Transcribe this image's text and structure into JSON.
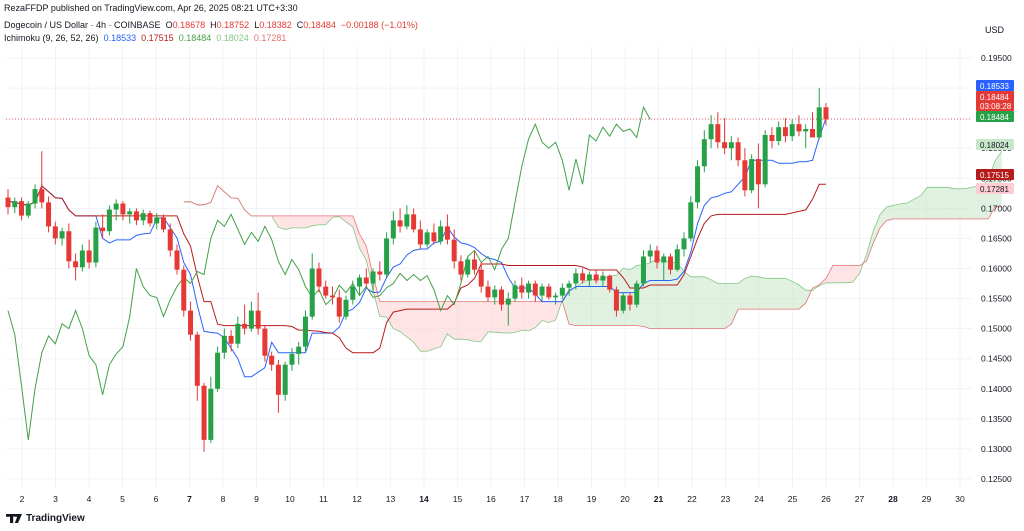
{
  "header": {
    "publisher": "RezaFFDP published on TradingView.com, Apr 26, 2025 08:21 UTC+3:30",
    "symbol": "Dogecoin / US Dollar · 4h · COINBASE",
    "ohlc": {
      "o_label": "O",
      "o": "0.18678",
      "h_label": "H",
      "h": "0.18752",
      "l_label": "L",
      "l": "0.18382",
      "c_label": "C",
      "c": "0.18484",
      "change": "−0.00188 (−1.01%)"
    },
    "ichimoku": {
      "label": "Ichimoku (9, 26, 52, 26)",
      "v1": "0.18533",
      "v2": "0.17515",
      "v3": "0.18484",
      "v4": "0.18024",
      "v5": "0.17281"
    }
  },
  "currency": "USD",
  "brand": "TradingView",
  "colors": {
    "up": "#26a148",
    "down": "#e53935",
    "conversion": "#2962ff",
    "base": "#b71c1c",
    "lagging": "#43a047",
    "cloud_bull": "#c8e6c9",
    "cloud_bear": "#ffcdd2"
  },
  "chart_data": {
    "type": "candlestick",
    "y_ticks": [
      "0.19500",
      "0.19000",
      "0.18500",
      "0.18000",
      "0.17500",
      "0.17000",
      "0.16500",
      "0.16000",
      "0.15500",
      "0.15000",
      "0.14500",
      "0.14000",
      "0.13500",
      "0.13000",
      "0.12500"
    ],
    "ylim": [
      0.1235,
      0.197
    ],
    "x_ticks": [
      "2",
      "3",
      "4",
      "5",
      "6",
      "7",
      "8",
      "9",
      "10",
      "11",
      "12",
      "13",
      "14",
      "15",
      "16",
      "17",
      "18",
      "19",
      "20",
      "21",
      "22",
      "23",
      "24",
      "25",
      "26",
      "27",
      "28",
      "29",
      "30"
    ],
    "x_ticks_bold": [
      "7",
      "14",
      "21",
      "28"
    ],
    "price_badges": [
      {
        "value": "0.18533",
        "color": "#2962ff"
      },
      {
        "value": "0.18484",
        "color": "#e53935"
      },
      {
        "value": "03:08:28",
        "color": "#e53935"
      },
      {
        "value": "0.18484",
        "color": "#26a148"
      },
      {
        "value": "0.18024",
        "color": "#c8e6c9"
      },
      {
        "value": "0.17515",
        "color": "#b71c1c"
      },
      {
        "value": "0.17281",
        "color": "#ffcdd2"
      }
    ],
    "current_price": 0.18484,
    "candles": [
      [
        0.1718,
        0.1732,
        0.169,
        0.1702
      ],
      [
        0.1702,
        0.1718,
        0.1692,
        0.1712
      ],
      [
        0.1712,
        0.1718,
        0.168,
        0.1688
      ],
      [
        0.1688,
        0.1712,
        0.1684,
        0.1708
      ],
      [
        0.1708,
        0.174,
        0.17,
        0.1732
      ],
      [
        0.1732,
        0.1795,
        0.17,
        0.171
      ],
      [
        0.171,
        0.172,
        0.166,
        0.167
      ],
      [
        0.167,
        0.1678,
        0.164,
        0.165
      ],
      [
        0.165,
        0.1668,
        0.1638,
        0.1662
      ],
      [
        0.1662,
        0.1675,
        0.16,
        0.1612
      ],
      [
        0.1612,
        0.1625,
        0.158,
        0.1602
      ],
      [
        0.1602,
        0.164,
        0.1595,
        0.163
      ],
      [
        0.163,
        0.1648,
        0.16,
        0.161
      ],
      [
        0.161,
        0.1678,
        0.1602,
        0.1668
      ],
      [
        0.1668,
        0.169,
        0.165,
        0.1662
      ],
      [
        0.1662,
        0.1705,
        0.1655,
        0.1698
      ],
      [
        0.1698,
        0.1715,
        0.168,
        0.1708
      ],
      [
        0.1708,
        0.1712,
        0.168,
        0.169
      ],
      [
        0.169,
        0.17,
        0.1675,
        0.1695
      ],
      [
        0.1695,
        0.17,
        0.1672,
        0.168
      ],
      [
        0.168,
        0.1698,
        0.1672,
        0.1692
      ],
      [
        0.1692,
        0.1696,
        0.167,
        0.1675
      ],
      [
        0.1675,
        0.1692,
        0.1665,
        0.1685
      ],
      [
        0.1685,
        0.169,
        0.166,
        0.1665
      ],
      [
        0.1665,
        0.1675,
        0.162,
        0.163
      ],
      [
        0.163,
        0.164,
        0.159,
        0.1598
      ],
      [
        0.1598,
        0.1605,
        0.152,
        0.153
      ],
      [
        0.153,
        0.1545,
        0.148,
        0.149
      ],
      [
        0.149,
        0.1495,
        0.138,
        0.1405
      ],
      [
        0.1405,
        0.141,
        0.1295,
        0.1315
      ],
      [
        0.1315,
        0.142,
        0.131,
        0.14
      ],
      [
        0.14,
        0.147,
        0.1395,
        0.146
      ],
      [
        0.146,
        0.15,
        0.145,
        0.1488
      ],
      [
        0.1488,
        0.1498,
        0.1462,
        0.1475
      ],
      [
        0.1475,
        0.152,
        0.1468,
        0.1508
      ],
      [
        0.1508,
        0.154,
        0.149,
        0.15
      ],
      [
        0.15,
        0.1545,
        0.1495,
        0.153
      ],
      [
        0.153,
        0.156,
        0.149,
        0.15
      ],
      [
        0.15,
        0.1505,
        0.1445,
        0.1455
      ],
      [
        0.1455,
        0.1462,
        0.143,
        0.144
      ],
      [
        0.144,
        0.1448,
        0.136,
        0.139
      ],
      [
        0.139,
        0.1445,
        0.138,
        0.144
      ],
      [
        0.144,
        0.1468,
        0.143,
        0.1458
      ],
      [
        0.1458,
        0.1478,
        0.144,
        0.147
      ],
      [
        0.147,
        0.153,
        0.1462,
        0.152
      ],
      [
        0.152,
        0.1625,
        0.1515,
        0.16
      ],
      [
        0.16,
        0.161,
        0.156,
        0.157
      ],
      [
        0.157,
        0.158,
        0.155,
        0.1555
      ],
      [
        0.1555,
        0.157,
        0.154,
        0.1552
      ],
      [
        0.1552,
        0.1565,
        0.151,
        0.152
      ],
      [
        0.152,
        0.1555,
        0.1515,
        0.1548
      ],
      [
        0.1548,
        0.158,
        0.154,
        0.157
      ],
      [
        0.157,
        0.159,
        0.1555,
        0.1585
      ],
      [
        0.1585,
        0.16,
        0.157,
        0.1575
      ],
      [
        0.1575,
        0.16,
        0.156,
        0.1595
      ],
      [
        0.1595,
        0.1612,
        0.158,
        0.159
      ],
      [
        0.159,
        0.166,
        0.1585,
        0.165
      ],
      [
        0.165,
        0.1695,
        0.164,
        0.168
      ],
      [
        0.168,
        0.17,
        0.166,
        0.167
      ],
      [
        0.167,
        0.1705,
        0.1665,
        0.169
      ],
      [
        0.169,
        0.17,
        0.166,
        0.1665
      ],
      [
        0.1665,
        0.168,
        0.1632,
        0.164
      ],
      [
        0.164,
        0.1665,
        0.1635,
        0.166
      ],
      [
        0.166,
        0.1675,
        0.164,
        0.1645
      ],
      [
        0.1645,
        0.168,
        0.164,
        0.167
      ],
      [
        0.167,
        0.169,
        0.164,
        0.1648
      ],
      [
        0.1648,
        0.1665,
        0.16,
        0.1612
      ],
      [
        0.1612,
        0.1622,
        0.158,
        0.159
      ],
      [
        0.159,
        0.162,
        0.1585,
        0.1615
      ],
      [
        0.1615,
        0.163,
        0.159,
        0.1598
      ],
      [
        0.1598,
        0.161,
        0.156,
        0.157
      ],
      [
        0.157,
        0.158,
        0.1545,
        0.1552
      ],
      [
        0.1552,
        0.1572,
        0.154,
        0.1565
      ],
      [
        0.1565,
        0.157,
        0.153,
        0.154
      ],
      [
        0.154,
        0.156,
        0.1505,
        0.155
      ],
      [
        0.155,
        0.158,
        0.1545,
        0.1572
      ],
      [
        0.1572,
        0.1585,
        0.155,
        0.156
      ],
      [
        0.156,
        0.158,
        0.155,
        0.1575
      ],
      [
        0.1575,
        0.158,
        0.1545,
        0.1555
      ],
      [
        0.1555,
        0.1575,
        0.1545,
        0.157
      ],
      [
        0.157,
        0.1575,
        0.1548,
        0.1552
      ],
      [
        0.1552,
        0.156,
        0.154,
        0.1555
      ],
      [
        0.1555,
        0.1575,
        0.155,
        0.1568
      ],
      [
        0.1568,
        0.158,
        0.1555,
        0.1575
      ],
      [
        0.1575,
        0.16,
        0.1565,
        0.1592
      ],
      [
        0.1592,
        0.16,
        0.1575,
        0.158
      ],
      [
        0.158,
        0.1595,
        0.157,
        0.159
      ],
      [
        0.159,
        0.1598,
        0.1575,
        0.158
      ],
      [
        0.158,
        0.1595,
        0.157,
        0.1588
      ],
      [
        0.1588,
        0.159,
        0.156,
        0.1565
      ],
      [
        0.1565,
        0.157,
        0.152,
        0.153
      ],
      [
        0.153,
        0.156,
        0.1525,
        0.1555
      ],
      [
        0.1555,
        0.156,
        0.153,
        0.154
      ],
      [
        0.154,
        0.158,
        0.1535,
        0.1575
      ],
      [
        0.1575,
        0.163,
        0.157,
        0.162
      ],
      [
        0.162,
        0.164,
        0.161,
        0.163
      ],
      [
        0.163,
        0.1638,
        0.16,
        0.161
      ],
      [
        0.161,
        0.1625,
        0.158,
        0.162
      ],
      [
        0.162,
        0.1625,
        0.159,
        0.1598
      ],
      [
        0.1598,
        0.164,
        0.1595,
        0.1632
      ],
      [
        0.1632,
        0.166,
        0.162,
        0.165
      ],
      [
        0.165,
        0.172,
        0.1645,
        0.171
      ],
      [
        0.171,
        0.178,
        0.17,
        0.177
      ],
      [
        0.177,
        0.183,
        0.176,
        0.1815
      ],
      [
        0.1815,
        0.1855,
        0.18,
        0.184
      ],
      [
        0.184,
        0.186,
        0.18,
        0.181
      ],
      [
        0.181,
        0.185,
        0.179,
        0.18
      ],
      [
        0.18,
        0.182,
        0.178,
        0.181
      ],
      [
        0.181,
        0.1818,
        0.177,
        0.178
      ],
      [
        0.178,
        0.18,
        0.172,
        0.173
      ],
      [
        0.173,
        0.179,
        0.1725,
        0.1782
      ],
      [
        0.1782,
        0.1808,
        0.17,
        0.174
      ],
      [
        0.174,
        0.183,
        0.1735,
        0.1822
      ],
      [
        0.1822,
        0.1835,
        0.18,
        0.1812
      ],
      [
        0.1812,
        0.1845,
        0.1805,
        0.1835
      ],
      [
        0.1835,
        0.185,
        0.181,
        0.182
      ],
      [
        0.182,
        0.1848,
        0.1812,
        0.184
      ],
      [
        0.184,
        0.1855,
        0.182,
        0.1828
      ],
      [
        0.1828,
        0.184,
        0.18,
        0.1832
      ],
      [
        0.1832,
        0.186,
        0.1825,
        0.1818
      ],
      [
        0.1818,
        0.19,
        0.1815,
        0.1868
      ],
      [
        0.1868,
        0.1875,
        0.1838,
        0.1848
      ]
    ]
  }
}
